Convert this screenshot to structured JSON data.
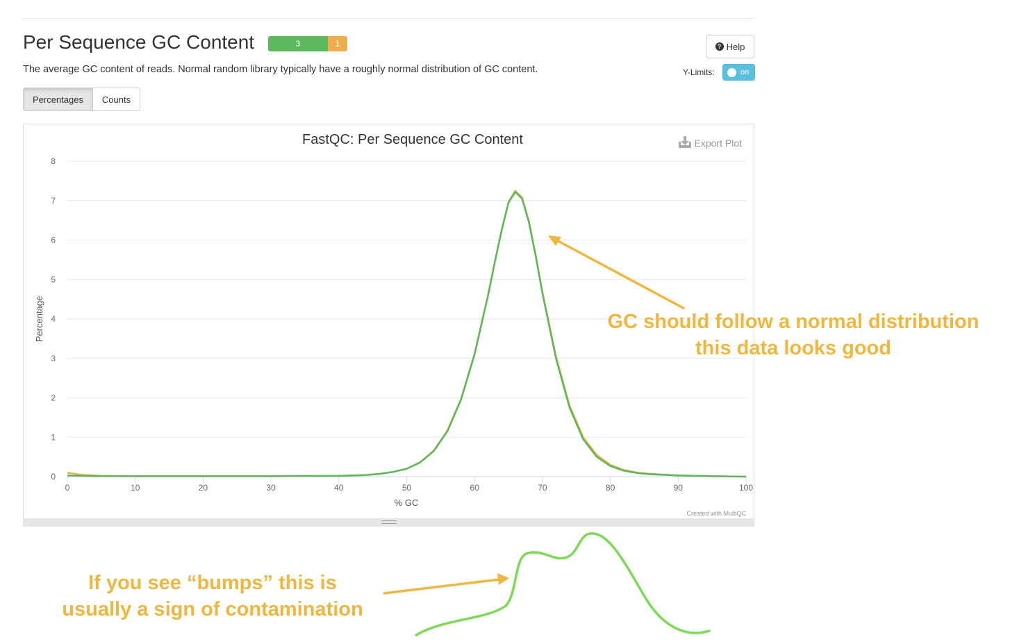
{
  "section": {
    "title": "Per Sequence GC Content",
    "status": {
      "pass_count": "3",
      "warn_count": "1",
      "pass_fraction": 0.75
    },
    "description": "The average GC content of reads. Normal random library typically have a roughly normal distribution of GC content.",
    "help_label": "Help",
    "ylimits_label": "Y-Limits:",
    "ylimits_toggle": "on",
    "tabs": [
      {
        "label": "Percentages",
        "active": true
      },
      {
        "label": "Counts",
        "active": false
      }
    ]
  },
  "plot": {
    "export_label": "Export Plot",
    "credit": "Created with MultiQC"
  },
  "annotations": {
    "normal_line1": "GC should follow a normal distribution",
    "normal_line2": "this data looks good",
    "bump_line1": "If you see “bumps” this is",
    "bump_line2": "usually a sign of contamination"
  },
  "colors": {
    "pass": "#5cb85c",
    "warn": "#f0ad4e",
    "annotation": "#f0b73f",
    "sketch": "#7ed957"
  },
  "chart_data": {
    "type": "line",
    "title": "FastQC: Per Sequence GC Content",
    "xlabel": "% GC",
    "ylabel": "Percentage",
    "xlim": [
      0,
      100
    ],
    "ylim": [
      0,
      8
    ],
    "xticks": [
      0,
      10,
      20,
      30,
      40,
      50,
      60,
      70,
      80,
      90,
      100
    ],
    "yticks": [
      0,
      1,
      2,
      3,
      4,
      5,
      6,
      7,
      8
    ],
    "grid": true,
    "series": [
      {
        "color": "#5cb85c",
        "x": [
          0,
          2,
          5,
          10,
          20,
          30,
          40,
          44,
          46,
          48,
          50,
          52,
          54,
          56,
          58,
          60,
          62,
          63,
          64,
          65,
          66,
          67,
          68,
          69,
          70,
          72,
          74,
          76,
          78,
          80,
          82,
          84,
          86,
          90,
          95,
          100
        ],
        "y": [
          0.03,
          0.02,
          0.01,
          0.01,
          0.01,
          0.01,
          0.02,
          0.04,
          0.07,
          0.12,
          0.2,
          0.36,
          0.65,
          1.15,
          1.95,
          3.1,
          4.6,
          5.45,
          6.25,
          6.95,
          7.22,
          7.05,
          6.45,
          5.6,
          4.65,
          3.0,
          1.75,
          0.95,
          0.5,
          0.27,
          0.15,
          0.09,
          0.06,
          0.03,
          0.01,
          0.0
        ]
      },
      {
        "color": "#f0ad4e",
        "x": [
          0,
          2,
          5,
          10,
          20,
          30,
          40,
          44,
          46,
          48,
          50,
          52,
          54,
          56,
          58,
          60,
          62,
          63,
          64,
          65,
          66,
          67,
          68,
          69,
          70,
          72,
          74,
          76,
          78,
          80,
          82,
          84,
          86,
          90,
          95,
          100
        ],
        "y": [
          0.1,
          0.05,
          0.02,
          0.01,
          0.01,
          0.01,
          0.02,
          0.04,
          0.07,
          0.12,
          0.2,
          0.37,
          0.66,
          1.17,
          1.97,
          3.12,
          4.62,
          5.47,
          6.27,
          6.97,
          7.25,
          7.08,
          6.48,
          5.63,
          4.68,
          3.05,
          1.8,
          1.0,
          0.55,
          0.3,
          0.17,
          0.1,
          0.07,
          0.03,
          0.01,
          0.0
        ]
      }
    ]
  }
}
